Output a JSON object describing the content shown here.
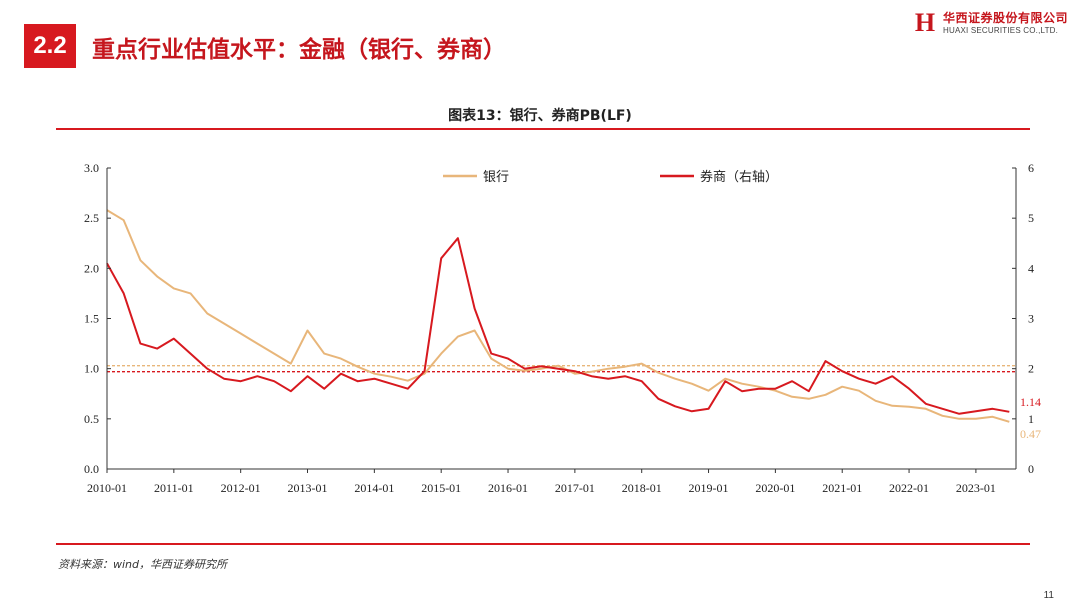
{
  "header": {
    "section_number": "2.2",
    "title": "重点行业估值水平：金融（银行、券商）",
    "logo_cn": "华西证券股份有限公司",
    "logo_en": "HUAXI SECURITIES CO.,LTD.",
    "logo_letter": "H"
  },
  "colors": {
    "brand_red": "#d7191f",
    "bank_line": "#e8b67a",
    "broker_line": "#d7191f"
  },
  "chart_data": {
    "type": "line",
    "title": "图表13：银行、券商PB(LF)",
    "x_tick_labels": [
      "2010-01",
      "2011-01",
      "2012-01",
      "2013-01",
      "2014-01",
      "2015-01",
      "2016-01",
      "2017-01",
      "2018-01",
      "2019-01",
      "2020-01",
      "2021-01",
      "2022-01",
      "2023-01"
    ],
    "left_axis": {
      "min": 0,
      "max": 3,
      "ticks": [
        "0.0",
        "0.5",
        "1.0",
        "1.5",
        "2.0",
        "2.5",
        "3.0"
      ]
    },
    "right_axis": {
      "min": 0,
      "max": 6,
      "ticks": [
        "0",
        "1",
        "2",
        "3",
        "4",
        "5",
        "6"
      ]
    },
    "legend_position": "top-center",
    "x": [
      2010.0,
      2010.25,
      2010.5,
      2010.75,
      2011.0,
      2011.25,
      2011.5,
      2011.75,
      2012.0,
      2012.25,
      2012.5,
      2012.75,
      2013.0,
      2013.25,
      2013.5,
      2013.75,
      2014.0,
      2014.25,
      2014.5,
      2014.75,
      2015.0,
      2015.25,
      2015.5,
      2015.75,
      2016.0,
      2016.25,
      2016.5,
      2016.75,
      2017.0,
      2017.25,
      2017.5,
      2017.75,
      2018.0,
      2018.25,
      2018.5,
      2018.75,
      2019.0,
      2019.25,
      2019.5,
      2019.75,
      2020.0,
      2020.25,
      2020.5,
      2020.75,
      2021.0,
      2021.25,
      2021.5,
      2021.75,
      2022.0,
      2022.25,
      2022.5,
      2022.75,
      2023.0,
      2023.25,
      2023.5
    ],
    "series": [
      {
        "name": "银行",
        "axis": "left",
        "values": [
          2.58,
          2.48,
          2.08,
          1.92,
          1.8,
          1.75,
          1.55,
          1.45,
          1.35,
          1.25,
          1.15,
          1.05,
          1.38,
          1.15,
          1.1,
          1.02,
          0.95,
          0.92,
          0.88,
          0.95,
          1.15,
          1.32,
          1.38,
          1.1,
          1.0,
          0.98,
          1.0,
          1.03,
          0.95,
          0.97,
          1.0,
          1.02,
          1.05,
          0.96,
          0.9,
          0.85,
          0.78,
          0.9,
          0.85,
          0.82,
          0.78,
          0.72,
          0.7,
          0.74,
          0.82,
          0.78,
          0.68,
          0.63,
          0.62,
          0.6,
          0.53,
          0.5,
          0.5,
          0.52,
          0.47
        ],
        "end_label": "0.47"
      },
      {
        "name": "券商（右轴）",
        "axis": "right",
        "values": [
          4.1,
          3.5,
          2.5,
          2.4,
          2.6,
          2.3,
          2.0,
          1.8,
          1.75,
          1.85,
          1.75,
          1.55,
          1.85,
          1.6,
          1.9,
          1.75,
          1.8,
          1.7,
          1.6,
          1.95,
          4.2,
          4.6,
          3.2,
          2.3,
          2.2,
          2.0,
          2.05,
          2.0,
          1.95,
          1.85,
          1.8,
          1.85,
          1.75,
          1.4,
          1.25,
          1.15,
          1.2,
          1.75,
          1.55,
          1.6,
          1.6,
          1.75,
          1.55,
          2.15,
          1.95,
          1.8,
          1.7,
          1.85,
          1.6,
          1.3,
          1.2,
          1.1,
          1.15,
          1.2,
          1.14
        ],
        "end_label": "1.14"
      }
    ],
    "reference_lines": [
      {
        "series": "银行",
        "axis": "left",
        "value": 1.03
      },
      {
        "series": "券商（右轴）",
        "axis": "right",
        "value": 1.94
      }
    ]
  },
  "footer": {
    "source": "资料来源：wind，华西证券研究所",
    "page_number": "11"
  }
}
